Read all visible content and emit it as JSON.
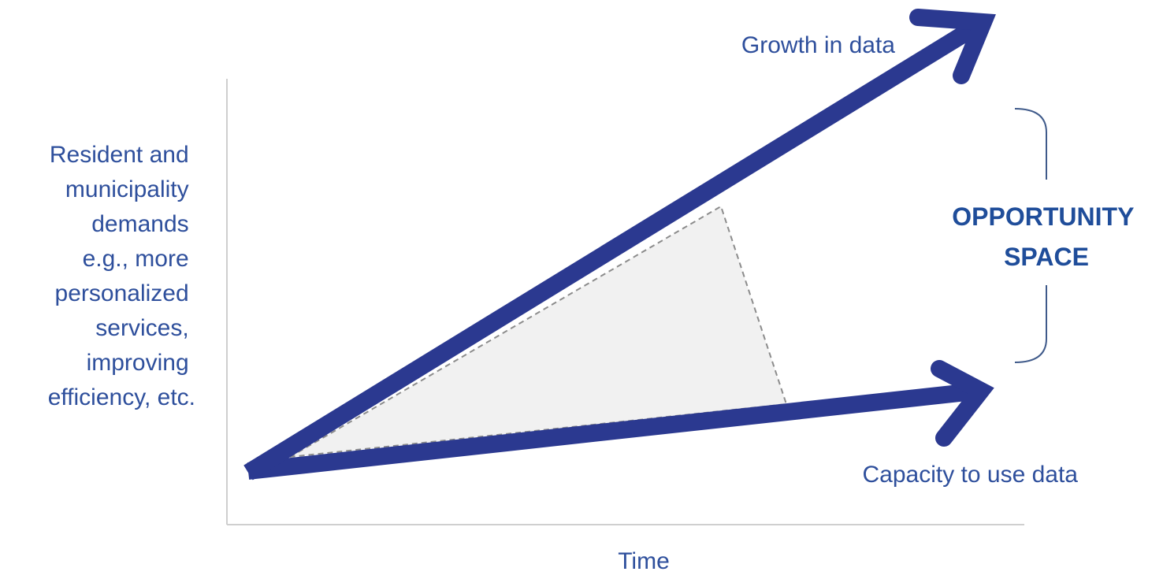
{
  "y_axis_label": {
    "lines": [
      "Resident and",
      "municipality",
      "demands",
      "e.g., more",
      "personalized",
      "services,",
      "improving",
      "efficiency, etc."
    ]
  },
  "x_axis_label": "Time",
  "upper_arrow_label": "Growth in data",
  "lower_arrow_label": "Capacity to use data",
  "opportunity_label": {
    "lines": [
      "OPPORTUNITY",
      "SPACE"
    ]
  },
  "colors": {
    "arrow": "#2b3990",
    "text": "#2e4f9c",
    "axis": "#cfcfcf",
    "bracket": "#3f5a8a",
    "gap_fill": "#f1f1f1",
    "gap_outline": "#8c8c8c"
  }
}
